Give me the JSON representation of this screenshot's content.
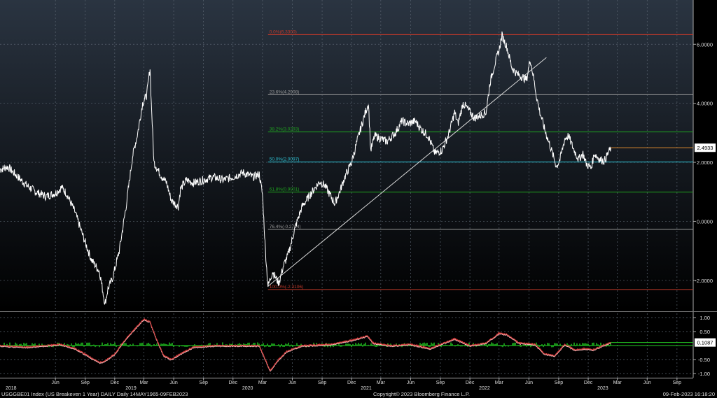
{
  "footer": {
    "left": "USGGBE01 Index (US Breakeven 1 Year) DAILY  Daily 14MAY1965-09FEB2023",
    "center": "Copyright© 2023 Bloomberg Finance L.P.",
    "right": "09-Feb-2023 16:18:20"
  },
  "colors": {
    "background_top": "#2a3441",
    "background_bottom": "#000000",
    "grid": "#5a6470",
    "price_line": "#ffffff",
    "fib_red": "#c0392b",
    "fib_gray": "#9a9a9a",
    "fib_green": "#1fa31f",
    "fib_cyan": "#2ec4d6",
    "last_marker": "#e08a2c",
    "osc_green": "#22cc22",
    "osc_red": "#d33a3a",
    "osc_pink": "#ffc0c0"
  },
  "chart_data": [
    {
      "type": "line",
      "panel": "price",
      "ylim": [
        -3.0,
        7.5
      ],
      "ytick_values": [
        -2.0,
        0.0,
        2.0,
        4.0,
        6.0
      ],
      "ytick_labels": [
        "-2.0000",
        "0.0000",
        "2.0000",
        "4.0000",
        "6.0000"
      ],
      "last_value_label": "2.4933",
      "last_value": 2.4933,
      "x_period": [
        "2017-12-12",
        "2023-10-21"
      ],
      "month_ticks": [
        {
          "date": "2018-06-01",
          "label": "Jun"
        },
        {
          "date": "2018-09-01",
          "label": "Sep"
        },
        {
          "date": "2018-12-01",
          "label": "Dec"
        },
        {
          "date": "2019-03-01",
          "label": "Mar"
        },
        {
          "date": "2019-06-01",
          "label": "Jun"
        },
        {
          "date": "2019-09-01",
          "label": "Sep"
        },
        {
          "date": "2019-12-01",
          "label": "Dec"
        },
        {
          "date": "2020-03-01",
          "label": "Mar"
        },
        {
          "date": "2020-06-01",
          "label": "Jun"
        },
        {
          "date": "2020-09-01",
          "label": "Sep"
        },
        {
          "date": "2020-12-01",
          "label": "Dec"
        },
        {
          "date": "2021-03-01",
          "label": "Mar"
        },
        {
          "date": "2021-06-01",
          "label": "Jun"
        },
        {
          "date": "2021-09-01",
          "label": "Sep"
        },
        {
          "date": "2021-12-01",
          "label": "Dec"
        },
        {
          "date": "2022-03-01",
          "label": "Mar"
        },
        {
          "date": "2022-06-01",
          "label": "Jun"
        },
        {
          "date": "2022-09-01",
          "label": "Sep"
        },
        {
          "date": "2022-12-01",
          "label": "Dec"
        },
        {
          "date": "2023-03-01",
          "label": "Mar"
        },
        {
          "date": "2023-06-01",
          "label": "Jun"
        },
        {
          "date": "2023-09-01",
          "label": "Sep"
        }
      ],
      "year_labels": [
        {
          "date": "2018-01-15",
          "label": "2018"
        },
        {
          "date": "2019-01-20",
          "label": "2019"
        },
        {
          "date": "2020-01-15",
          "label": "2020"
        },
        {
          "date": "2021-01-15",
          "label": "2021"
        },
        {
          "date": "2022-01-15",
          "label": "2022"
        },
        {
          "date": "2023-01-15",
          "label": "2023"
        }
      ],
      "fibonacci_levels": [
        {
          "label": "0.0%(6.3300)",
          "value": 6.33,
          "color": "fib_red"
        },
        {
          "label": "23.6%(4.2908)",
          "value": 4.2908,
          "color": "fib_gray"
        },
        {
          "label": "38.2%(3.0293)",
          "value": 3.0293,
          "color": "fib_green"
        },
        {
          "label": "50.0%(2.0097)",
          "value": 2.0097,
          "color": "fib_cyan"
        },
        {
          "label": "61.8%(0.9901)",
          "value": 0.9901,
          "color": "fib_green"
        },
        {
          "label": "76.4%(-0.2714)",
          "value": -0.2714,
          "color": "fib_gray"
        },
        {
          "label": "100.0%(-2.3106)",
          "value": -2.3106,
          "color": "fib_red"
        }
      ],
      "fib_start_date": "2020-03-18",
      "trendline": [
        {
          "date": "2020-03-18",
          "y": -2.2
        },
        {
          "date": "2022-07-25",
          "y": 5.55
        }
      ],
      "series": [
        {
          "values": [
            [
              "2017-12-12",
              1.75
            ],
            [
              "2018-01-05",
              1.85
            ],
            [
              "2018-02-01",
              1.55
            ],
            [
              "2018-03-01",
              1.25
            ],
            [
              "2018-04-01",
              1.0
            ],
            [
              "2018-05-01",
              0.85
            ],
            [
              "2018-06-01",
              0.95
            ],
            [
              "2018-06-20",
              1.15
            ],
            [
              "2018-07-05",
              0.95
            ],
            [
              "2018-08-01",
              0.3
            ],
            [
              "2018-08-25",
              -0.5
            ],
            [
              "2018-09-20",
              -1.3
            ],
            [
              "2018-10-15",
              -1.7
            ],
            [
              "2018-11-01",
              -2.8
            ],
            [
              "2018-11-10",
              -2.3
            ],
            [
              "2018-11-25",
              -1.9
            ],
            [
              "2018-12-15",
              -1.0
            ],
            [
              "2019-01-05",
              0.5
            ],
            [
              "2019-01-25",
              2.2
            ],
            [
              "2019-02-10",
              3.0
            ],
            [
              "2019-02-25",
              4.0
            ],
            [
              "2019-03-10",
              4.3
            ],
            [
              "2019-03-20",
              5.2
            ],
            [
              "2019-03-24",
              4.0
            ],
            [
              "2019-04-01",
              2.0
            ],
            [
              "2019-04-20",
              1.6
            ],
            [
              "2019-05-10",
              1.3
            ],
            [
              "2019-05-25",
              0.7
            ],
            [
              "2019-06-15",
              0.5
            ],
            [
              "2019-06-22",
              1.1
            ],
            [
              "2019-07-10",
              1.4
            ],
            [
              "2019-08-01",
              1.3
            ],
            [
              "2019-09-01",
              1.4
            ],
            [
              "2019-10-01",
              1.5
            ],
            [
              "2019-11-01",
              1.4
            ],
            [
              "2019-12-01",
              1.5
            ],
            [
              "2020-01-01",
              1.65
            ],
            [
              "2020-02-01",
              1.5
            ],
            [
              "2020-02-20",
              1.6
            ],
            [
              "2020-03-01",
              0.9
            ],
            [
              "2020-03-10",
              -1.0
            ],
            [
              "2020-03-18",
              -2.2
            ],
            [
              "2020-04-01",
              -1.7
            ],
            [
              "2020-04-20",
              -2.1
            ],
            [
              "2020-05-05",
              -1.5
            ],
            [
              "2020-05-20",
              -1.1
            ],
            [
              "2020-06-10",
              -0.2
            ],
            [
              "2020-07-01",
              0.5
            ],
            [
              "2020-08-01",
              1.0
            ],
            [
              "2020-08-25",
              1.35
            ],
            [
              "2020-09-10",
              1.2
            ],
            [
              "2020-09-25",
              0.9
            ],
            [
              "2020-10-10",
              0.6
            ],
            [
              "2020-10-25",
              1.0
            ],
            [
              "2020-11-10",
              1.5
            ],
            [
              "2020-12-01",
              2.0
            ],
            [
              "2020-12-20",
              2.8
            ],
            [
              "2021-01-10",
              3.6
            ],
            [
              "2021-01-22",
              4.0
            ],
            [
              "2021-01-29",
              2.4
            ],
            [
              "2021-02-10",
              2.9
            ],
            [
              "2021-03-01",
              2.8
            ],
            [
              "2021-03-20",
              2.7
            ],
            [
              "2021-04-15",
              3.0
            ],
            [
              "2021-05-05",
              3.4
            ],
            [
              "2021-05-25",
              3.3
            ],
            [
              "2021-06-15",
              3.4
            ],
            [
              "2021-07-05",
              3.1
            ],
            [
              "2021-07-25",
              2.9
            ],
            [
              "2021-08-15",
              2.3
            ],
            [
              "2021-09-05",
              2.4
            ],
            [
              "2021-09-25",
              2.9
            ],
            [
              "2021-10-15",
              3.7
            ],
            [
              "2021-10-25",
              3.3
            ],
            [
              "2021-11-10",
              4.0
            ],
            [
              "2021-11-25",
              3.8
            ],
            [
              "2021-12-15",
              3.5
            ],
            [
              "2022-01-05",
              3.6
            ],
            [
              "2022-01-20",
              3.7
            ],
            [
              "2022-02-01",
              4.7
            ],
            [
              "2022-02-15",
              5.3
            ],
            [
              "2022-03-01",
              5.8
            ],
            [
              "2022-03-10",
              6.3
            ],
            [
              "2022-03-25",
              5.9
            ],
            [
              "2022-04-10",
              5.2
            ],
            [
              "2022-04-25",
              5.0
            ],
            [
              "2022-05-10",
              4.9
            ],
            [
              "2022-05-25",
              4.8
            ],
            [
              "2022-06-05",
              5.5
            ],
            [
              "2022-06-15",
              4.9
            ],
            [
              "2022-06-25",
              4.2
            ],
            [
              "2022-07-05",
              3.7
            ],
            [
              "2022-07-20",
              3.1
            ],
            [
              "2022-08-10",
              2.4
            ],
            [
              "2022-08-25",
              1.85
            ],
            [
              "2022-09-05",
              2.1
            ],
            [
              "2022-09-20",
              2.8
            ],
            [
              "2022-10-01",
              2.9
            ],
            [
              "2022-10-15",
              2.5
            ],
            [
              "2022-11-01",
              2.1
            ],
            [
              "2022-11-15",
              2.3
            ],
            [
              "2022-11-25",
              1.95
            ],
            [
              "2022-12-10",
              1.8
            ],
            [
              "2022-12-20",
              2.3
            ],
            [
              "2023-01-05",
              2.1
            ],
            [
              "2023-01-20",
              2.05
            ],
            [
              "2023-02-09",
              2.4933
            ]
          ]
        }
      ]
    },
    {
      "type": "line",
      "panel": "oscillator",
      "ylim": [
        -1.15,
        1.15
      ],
      "ytick_values": [
        -1.0,
        -0.5,
        0.5,
        1.0
      ],
      "ytick_labels": [
        "-1.00",
        "-0.50",
        "0.50",
        "1.00"
      ],
      "last_value_label": "0.1087",
      "last_value": 0.1087,
      "zero_line": 0.0,
      "series": [
        {
          "name": "",
          "values": [
            [
              "2017-12-12",
              0.0
            ],
            [
              "2018-03-01",
              -0.05
            ],
            [
              "2018-05-01",
              0.0
            ],
            [
              "2018-06-15",
              0.05
            ],
            [
              "2018-08-01",
              -0.1
            ],
            [
              "2018-09-15",
              -0.4
            ],
            [
              "2018-10-15",
              -0.6
            ],
            [
              "2018-11-01",
              -0.55
            ],
            [
              "2018-12-01",
              -0.3
            ],
            [
              "2019-01-01",
              0.2
            ],
            [
              "2019-02-01",
              0.6
            ],
            [
              "2019-03-01",
              0.95
            ],
            [
              "2019-03-20",
              0.85
            ],
            [
              "2019-04-10",
              0.2
            ],
            [
              "2019-05-01",
              -0.35
            ],
            [
              "2019-05-25",
              -0.5
            ],
            [
              "2019-06-20",
              -0.3
            ],
            [
              "2019-08-01",
              -0.05
            ],
            [
              "2019-10-01",
              0.0
            ],
            [
              "2020-01-01",
              0.0
            ],
            [
              "2020-02-20",
              0.0
            ],
            [
              "2020-03-10",
              -0.5
            ],
            [
              "2020-03-25",
              -0.9
            ],
            [
              "2020-04-15",
              -0.55
            ],
            [
              "2020-05-15",
              -0.2
            ],
            [
              "2020-07-01",
              0.0
            ],
            [
              "2020-10-01",
              0.05
            ],
            [
              "2020-12-01",
              0.2
            ],
            [
              "2021-01-20",
              0.35
            ],
            [
              "2021-02-05",
              0.1
            ],
            [
              "2021-04-01",
              0.0
            ],
            [
              "2021-06-01",
              0.05
            ],
            [
              "2021-08-01",
              -0.1
            ],
            [
              "2021-10-15",
              0.25
            ],
            [
              "2021-12-01",
              0.0
            ],
            [
              "2022-01-20",
              0.1
            ],
            [
              "2022-03-01",
              0.45
            ],
            [
              "2022-03-25",
              0.4
            ],
            [
              "2022-05-01",
              0.1
            ],
            [
              "2022-06-20",
              0.05
            ],
            [
              "2022-07-20",
              -0.3
            ],
            [
              "2022-08-20",
              -0.35
            ],
            [
              "2022-09-20",
              0.05
            ],
            [
              "2022-10-20",
              -0.15
            ],
            [
              "2022-11-20",
              -0.1
            ],
            [
              "2022-12-15",
              -0.15
            ],
            [
              "2023-01-15",
              0.0
            ],
            [
              "2023-02-09",
              0.1087
            ]
          ]
        }
      ]
    }
  ]
}
